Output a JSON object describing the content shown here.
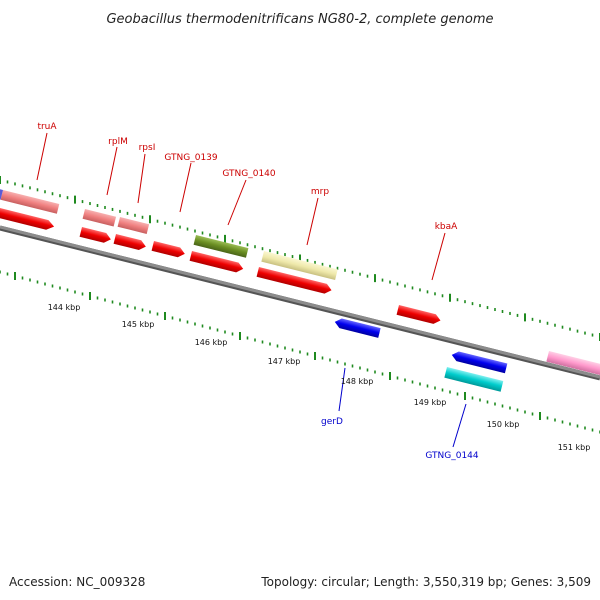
{
  "title": "Geobacillus thermodenitrificans NG80-2, complete genome",
  "footer": {
    "accession": "Accession: NC_009328",
    "summary": "Topology: circular; Length: 3,550,319 bp; Genes: 3,509"
  },
  "colors": {
    "backbone": "#808080",
    "tick": "#1f8a1f",
    "label_top": "#cc0000",
    "label_bottom": "#0000cc"
  },
  "scale_labels": [
    "144 kbp",
    "145 kbp",
    "146 kbp",
    "147 kbp",
    "148 kbp",
    "149 kbp",
    "150 kbp",
    "151 kbp"
  ],
  "gene_labels": {
    "truA": "truA",
    "rplM": "rplM",
    "rpsI": "rpsI",
    "gtng0139": "GTNG_0139",
    "gtng0140": "GTNG_0140",
    "mrp": "mrp",
    "kbaA": "kbaA",
    "gerD": "gerD",
    "gtng0144": "GTNG_0144"
  },
  "feature_colors": {
    "cds_forward": "#ee0000",
    "cds_reverse": "#0000ee",
    "rrna": "#f08080",
    "trna": "#6b8e23",
    "misc": "#eee8aa",
    "ncrna": "#00cccc",
    "other": "#ff99cc",
    "partial": "#5b5bd6"
  }
}
